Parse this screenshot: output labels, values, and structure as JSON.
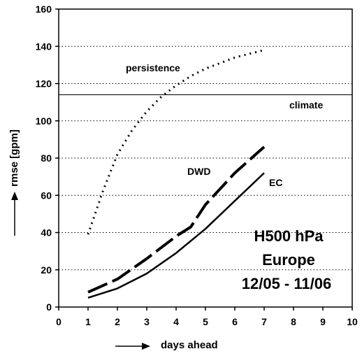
{
  "chart_data": {
    "type": "line",
    "xlabel": "days ahead",
    "ylabel": "rmse [gpm]",
    "xlim": [
      0,
      10
    ],
    "ylim": [
      0,
      160
    ],
    "xticks": [
      "0",
      "1",
      "2",
      "3",
      "4",
      "5",
      "6",
      "7",
      "8",
      "9",
      "10"
    ],
    "yticks": [
      "0",
      "20",
      "40",
      "60",
      "80",
      "100",
      "120",
      "140",
      "160"
    ],
    "grid": "horizontal dotted",
    "series": [
      {
        "name": "persistence",
        "style": "dotted",
        "x": [
          1,
          1.5,
          2,
          2.5,
          3,
          3.5,
          4,
          4.5,
          5,
          5.5,
          6,
          6.5,
          7
        ],
        "values": [
          39,
          62,
          82,
          95,
          105,
          113,
          119,
          124,
          128,
          131,
          134,
          136,
          138
        ]
      },
      {
        "name": "climate",
        "style": "solid-thin",
        "x": [
          0,
          10
        ],
        "values": [
          114,
          114
        ]
      },
      {
        "name": "DWD",
        "style": "dashed",
        "x": [
          1,
          2,
          3,
          4,
          4.5,
          5,
          6,
          7
        ],
        "values": [
          8,
          15,
          26,
          38,
          43,
          55,
          72,
          86
        ]
      },
      {
        "name": "EC",
        "style": "solid",
        "x": [
          1,
          2,
          3,
          4,
          5,
          6,
          7
        ],
        "values": [
          5,
          10,
          18,
          29,
          42,
          57,
          72
        ]
      }
    ],
    "annotation_lines": [
      "H500 hPa",
      "Europe",
      "12/05 - 11/06"
    ]
  }
}
